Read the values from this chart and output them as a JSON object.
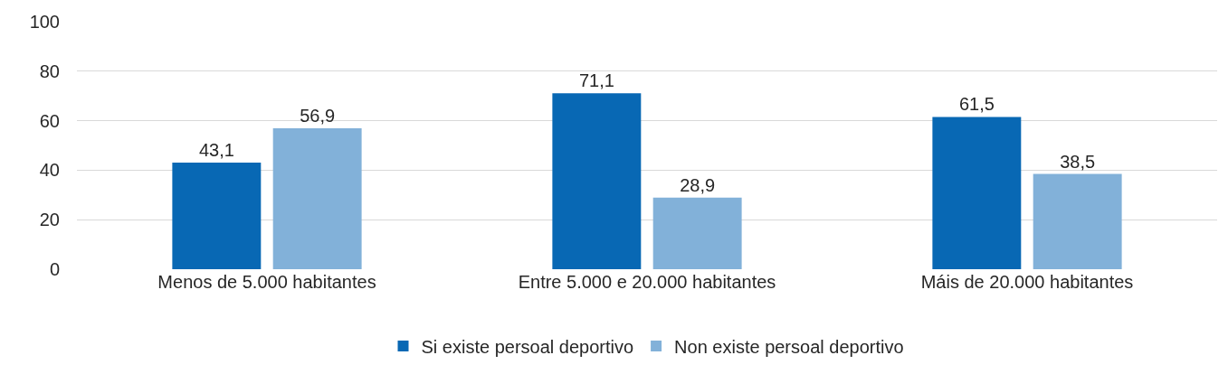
{
  "chart_data": {
    "type": "bar",
    "categories": [
      "Menos de 5.000 habitantes",
      "Entre 5.000 e 20.000 habitantes",
      "Máis de 20.000 habitantes"
    ],
    "series": [
      {
        "name": "Si existe persoal deportivo",
        "color": "#0868b4",
        "values": [
          43.1,
          71.1,
          61.5
        ],
        "value_labels": [
          "43,1",
          "71,1",
          "61,5"
        ]
      },
      {
        "name": "Non existe persoal deportivo",
        "color": "#82b1d9",
        "values": [
          56.9,
          28.9,
          38.5
        ],
        "value_labels": [
          "56,9",
          "28,9",
          "38,5"
        ]
      }
    ],
    "ylim": [
      0,
      100
    ],
    "yticks": [
      0,
      20,
      40,
      60,
      80,
      100
    ],
    "grid": "y",
    "legend": "bottom"
  }
}
